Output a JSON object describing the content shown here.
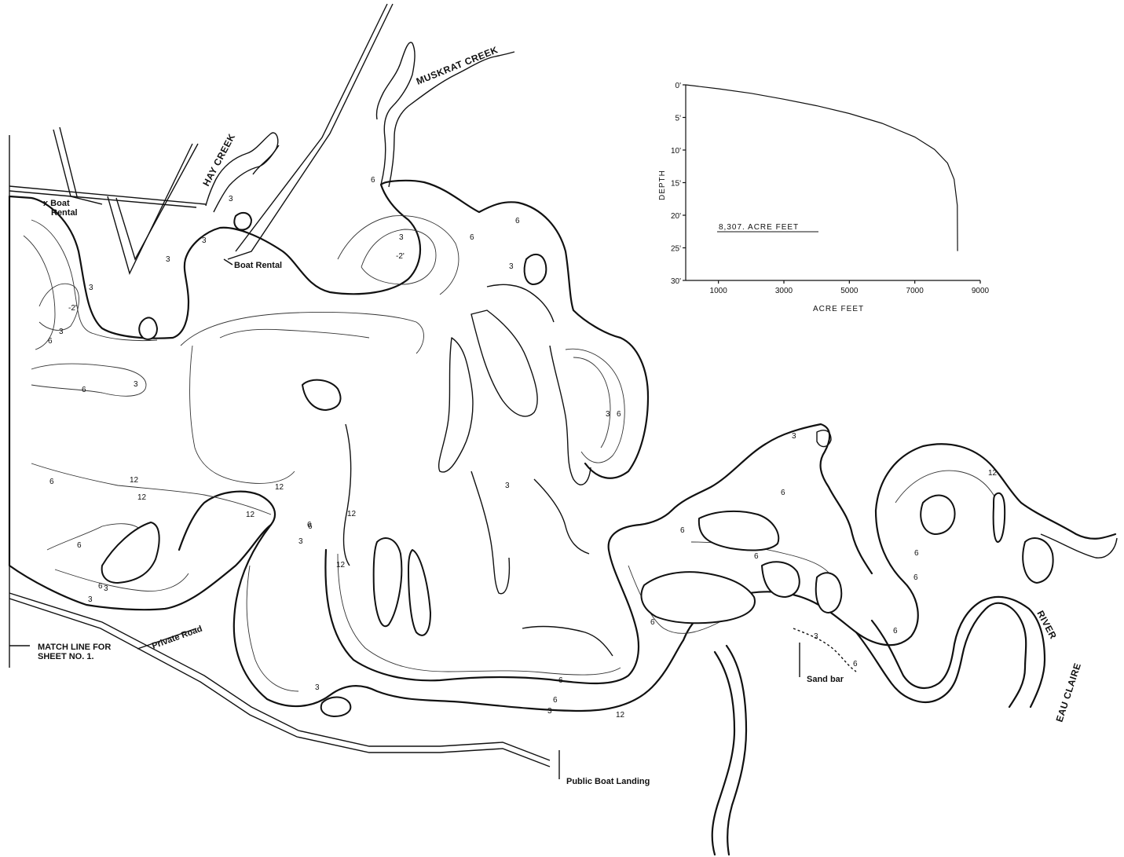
{
  "labels": {
    "hay_creek": "HAY CREEK",
    "muskrat_creek": "MUSKRAT CREEK",
    "boat_rental_1_line1": "x  Boat",
    "boat_rental_1_line2": "Rental",
    "boat_rental_2": "Boat Rental",
    "private_road": "Private Road",
    "match_line_1": "MATCH LINE FOR",
    "match_line_2": "SHEET NO. 1.",
    "sand_bar": "Sand bar",
    "public_boat_landing": "Public Boat Landing",
    "river": "RIVER",
    "eau_claire": "EAU CLAIRE"
  },
  "depth_marks": [
    {
      "id": "d1",
      "text": "3"
    },
    {
      "id": "d2",
      "text": "3"
    },
    {
      "id": "d3",
      "text": "3"
    },
    {
      "id": "d4",
      "text": "6"
    },
    {
      "id": "d5",
      "text": "3"
    },
    {
      "id": "d6",
      "text": "-2'"
    },
    {
      "id": "d7",
      "text": "6"
    },
    {
      "id": "d8",
      "text": "6"
    },
    {
      "id": "d9",
      "text": "3"
    },
    {
      "id": "d10",
      "text": "-2'"
    },
    {
      "id": "d11",
      "text": "3"
    },
    {
      "id": "d12",
      "text": "6"
    },
    {
      "id": "d13",
      "text": "3"
    },
    {
      "id": "d14",
      "text": "6"
    },
    {
      "id": "d15",
      "text": "3"
    },
    {
      "id": "d16",
      "text": "6"
    },
    {
      "id": "d17",
      "text": "12"
    },
    {
      "id": "d18",
      "text": "12"
    },
    {
      "id": "d19",
      "text": "6"
    },
    {
      "id": "d20",
      "text": "12"
    },
    {
      "id": "d21",
      "text": "12"
    },
    {
      "id": "d22",
      "text": "6"
    },
    {
      "id": "d23",
      "text": "3"
    },
    {
      "id": "d24",
      "text": "12"
    },
    {
      "id": "d25",
      "text": "6"
    },
    {
      "id": "d26",
      "text": "3"
    },
    {
      "id": "d27",
      "text": "3"
    },
    {
      "id": "d28",
      "text": "3"
    },
    {
      "id": "d29",
      "text": "6"
    },
    {
      "id": "d30",
      "text": "6"
    },
    {
      "id": "d31",
      "text": "3"
    },
    {
      "id": "d32",
      "text": "12"
    },
    {
      "id": "d33",
      "text": "3"
    },
    {
      "id": "d34",
      "text": "6"
    },
    {
      "id": "d35",
      "text": "6"
    },
    {
      "id": "d36",
      "text": "6"
    },
    {
      "id": "d37",
      "text": "3"
    },
    {
      "id": "d38",
      "text": "6"
    },
    {
      "id": "d39",
      "text": "6"
    },
    {
      "id": "d40",
      "text": "12"
    },
    {
      "id": "d41",
      "text": "6"
    },
    {
      "id": "d42",
      "text": "6"
    },
    {
      "id": "d43",
      "text": "3"
    },
    {
      "id": "d44",
      "text": "6"
    },
    {
      "id": "d45",
      "text": "12"
    },
    {
      "id": "d46",
      "text": "3"
    },
    {
      "id": "d47",
      "text": "6"
    },
    {
      "id": "d48",
      "text": "6"
    }
  ],
  "chart_data": {
    "type": "line",
    "annotation": "8,307. ACRE FEET",
    "xlabel": "ACRE FEET",
    "ylabel": "DEPTH",
    "x_ticks": [
      "1000",
      "3000",
      "5000",
      "7000",
      "9000"
    ],
    "x_tick_values": [
      1000,
      3000,
      5000,
      7000,
      9000
    ],
    "y_ticks": [
      "0'",
      "5'",
      "10'",
      "15'",
      "20'",
      "25'",
      "30'"
    ],
    "y_tick_values": [
      0,
      5,
      10,
      15,
      20,
      25,
      30
    ],
    "xlim": [
      0,
      9000
    ],
    "ylim": [
      0,
      30
    ],
    "y_inverted": true,
    "series": [
      {
        "x": [
          0,
          1000,
          2000,
          3000,
          4000,
          5000,
          6000,
          7000,
          7600,
          8000,
          8200,
          8300,
          8307
        ],
        "y": [
          0,
          0.6,
          1.3,
          2.2,
          3.2,
          4.4,
          5.9,
          8.0,
          9.9,
          12.0,
          14.5,
          18.5,
          25.5
        ]
      }
    ]
  }
}
